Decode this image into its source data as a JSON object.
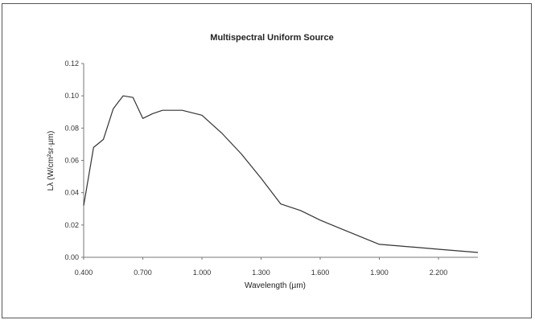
{
  "chart_data": {
    "type": "line",
    "title": "Multispectral Uniform Source",
    "xlabel": "Wavelength (µm)",
    "ylabel": "Lλ (W/cm²sr·µm)",
    "xlim": [
      0.4,
      2.4
    ],
    "ylim": [
      0,
      0.12
    ],
    "grid": false,
    "legend": "none",
    "xticks": [
      "0.400",
      "0.700",
      "1.000",
      "1.300",
      "1.600",
      "1.900",
      "2.200"
    ],
    "xtick_values": [
      0.4,
      0.7,
      1.0,
      1.3,
      1.6,
      1.9,
      2.2
    ],
    "yticks": [
      "0.00",
      "0.02",
      "0.04",
      "0.06",
      "0.08",
      "0.10",
      "0.12"
    ],
    "ytick_values": [
      0,
      0.02,
      0.04,
      0.06,
      0.08,
      0.1,
      0.12
    ],
    "series": [
      {
        "color": "#333333",
        "x": [
          0.4,
          0.45,
          0.5,
          0.55,
          0.6,
          0.65,
          0.7,
          0.75,
          0.8,
          0.9,
          1.0,
          1.1,
          1.2,
          1.3,
          1.4,
          1.5,
          1.6,
          1.7,
          1.8,
          1.9,
          2.0,
          2.1,
          2.2,
          2.3,
          2.4
        ],
        "y": [
          0.032,
          0.068,
          0.073,
          0.092,
          0.1,
          0.099,
          0.086,
          0.089,
          0.091,
          0.091,
          0.088,
          0.077,
          0.064,
          0.049,
          0.033,
          0.029,
          0.023,
          0.018,
          0.013,
          0.008,
          0.007,
          0.006,
          0.005,
          0.004,
          0.003
        ]
      }
    ]
  }
}
